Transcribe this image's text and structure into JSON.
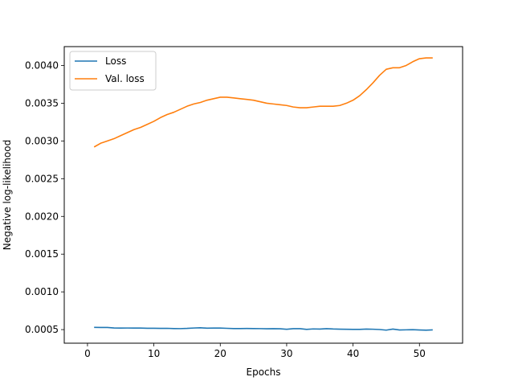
{
  "chart_data": {
    "type": "line",
    "title": "",
    "xlabel": "Epochs",
    "ylabel": "Negative log-likelihood",
    "xlim": [
      -3.5,
      56.5
    ],
    "ylim": [
      0.00032,
      0.00425
    ],
    "xticks": [
      0,
      10,
      20,
      30,
      40,
      50
    ],
    "xtick_labels": [
      "0",
      "10",
      "20",
      "30",
      "40",
      "50"
    ],
    "yticks": [
      0.0005,
      0.001,
      0.0015,
      0.002,
      0.0025,
      0.003,
      0.0035,
      0.004
    ],
    "ytick_labels": [
      "0.0005",
      "0.0010",
      "0.0015",
      "0.0020",
      "0.0025",
      "0.0030",
      "0.0035",
      "0.0040"
    ],
    "grid": false,
    "legend_position": "top-left",
    "series": [
      {
        "name": "Loss",
        "color": "#1f77b4",
        "x": [
          1,
          2,
          3,
          4,
          5,
          6,
          7,
          8,
          9,
          10,
          11,
          12,
          13,
          14,
          15,
          16,
          17,
          18,
          19,
          20,
          21,
          22,
          23,
          24,
          25,
          26,
          27,
          28,
          29,
          30,
          31,
          32,
          33,
          34,
          35,
          36,
          37,
          38,
          39,
          40,
          41,
          42,
          43,
          44,
          45,
          46,
          47,
          48,
          49,
          50,
          51,
          52
        ],
        "y": [
          0.00053,
          0.000528,
          0.000528,
          0.000522,
          0.00052,
          0.000521,
          0.00052,
          0.00052,
          0.000518,
          0.000518,
          0.000516,
          0.000517,
          0.000514,
          0.000513,
          0.000516,
          0.000521,
          0.000524,
          0.000519,
          0.00052,
          0.00052,
          0.000517,
          0.000514,
          0.000514,
          0.000515,
          0.000514,
          0.000513,
          0.000511,
          0.000512,
          0.000511,
          0.000504,
          0.000512,
          0.000512,
          0.000503,
          0.000509,
          0.000507,
          0.000512,
          0.000508,
          0.000506,
          0.000504,
          0.000503,
          0.000503,
          0.000507,
          0.000505,
          0.000501,
          0.000493,
          0.000507,
          0.000495,
          0.000497,
          0.000499,
          0.000495,
          0.000492,
          0.000496
        ]
      },
      {
        "name": "Val. loss",
        "color": "#ff7f0e",
        "x": [
          1,
          2,
          3,
          4,
          5,
          6,
          7,
          8,
          9,
          10,
          11,
          12,
          13,
          14,
          15,
          16,
          17,
          18,
          19,
          20,
          21,
          22,
          23,
          24,
          25,
          26,
          27,
          28,
          29,
          30,
          31,
          32,
          33,
          34,
          35,
          36,
          37,
          38,
          39,
          40,
          41,
          42,
          43,
          44,
          45,
          46,
          47,
          48,
          49,
          50,
          51,
          52
        ],
        "y": [
          0.00292,
          0.00297,
          0.003,
          0.00303,
          0.00307,
          0.00311,
          0.00315,
          0.00318,
          0.00322,
          0.00326,
          0.00331,
          0.00335,
          0.00338,
          0.00342,
          0.00346,
          0.00349,
          0.00351,
          0.00354,
          0.00356,
          0.00358,
          0.00358,
          0.00357,
          0.00356,
          0.00355,
          0.00354,
          0.00352,
          0.0035,
          0.00349,
          0.00348,
          0.00347,
          0.00345,
          0.00344,
          0.00344,
          0.00345,
          0.00346,
          0.00346,
          0.00346,
          0.00347,
          0.0035,
          0.00354,
          0.0036,
          0.00368,
          0.00377,
          0.00387,
          0.00395,
          0.00397,
          0.00397,
          0.004,
          0.00405,
          0.00409,
          0.0041,
          0.0041
        ]
      }
    ]
  }
}
